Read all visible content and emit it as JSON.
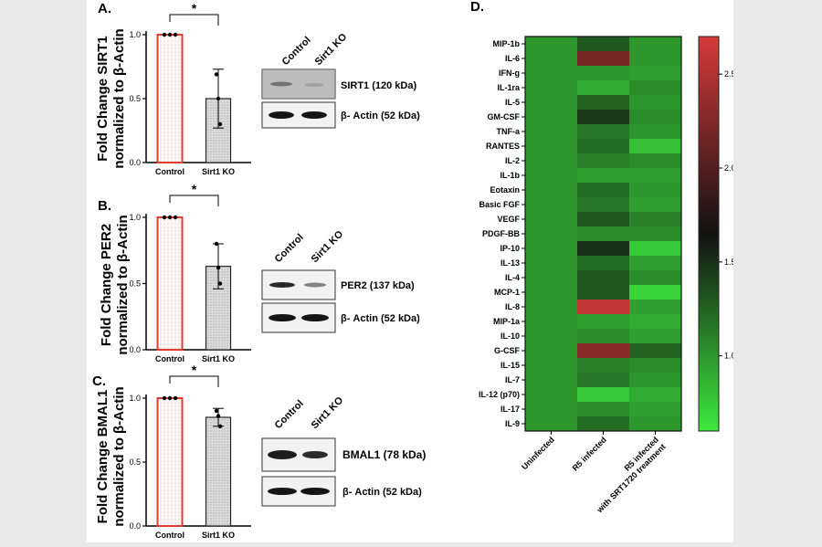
{
  "panels": [
    {
      "letter": "A.",
      "ylabel1": "Fold Change SIRT1",
      "ylabel2": "normalized to β-Actin",
      "ticks": [
        "0.0",
        "0.5",
        "1.0"
      ],
      "sig": "*",
      "blot_target": "SIRT1 (120 kDa)",
      "blot_actin": "β- Actin (52 kDa)"
    },
    {
      "letter": "B.",
      "ylabel1": "Fold Change PER2",
      "ylabel2": "normalized to β-Actin",
      "ticks": [
        "0.0",
        "0.5",
        "1.0"
      ],
      "sig": "*",
      "blot_target": "PER2 (137 kDa)",
      "blot_actin": "β- Actin (52 kDa)"
    },
    {
      "letter": "C.",
      "ylabel1": "Fold Change BMAL1",
      "ylabel2": "normalized to β-Actin",
      "ticks": [
        "0.0",
        "0.5",
        "1.0"
      ],
      "sig": "*",
      "blot_target": "BMAL1 (78 kDa)",
      "blot_actin": "β- Actin (52 kDa)"
    }
  ],
  "heatmap_letter": "D.",
  "colors": {
    "control_bar": "#e53b2c",
    "ko_bar": "#d8d8d8",
    "low": "#3ee83e",
    "mid": "#101010",
    "high": "#d63a3a"
  },
  "chart_data": [
    {
      "type": "bar",
      "title": "A.",
      "ylabel": "Fold Change SIRT1 normalized to β-Actin",
      "categories": [
        "Control",
        "Sirt1 KO"
      ],
      "values": [
        1.0,
        0.5
      ],
      "errors": [
        0,
        0.23
      ],
      "points": [
        [
          1.0,
          1.0,
          1.0
        ],
        [
          0.69,
          0.5,
          0.3
        ]
      ],
      "ylim": [
        0,
        1.1
      ]
    },
    {
      "type": "bar",
      "title": "B.",
      "ylabel": "Fold Change PER2 normalized to β-Actin",
      "categories": [
        "Control",
        "Sirt1 KO"
      ],
      "values": [
        1.0,
        0.63
      ],
      "errors": [
        0,
        0.17
      ],
      "points": [
        [
          1.0,
          1.0,
          1.0
        ],
        [
          0.8,
          0.62,
          0.5
        ]
      ],
      "ylim": [
        0,
        1.1
      ]
    },
    {
      "type": "bar",
      "title": "C.",
      "ylabel": "Fold Change BMAL1 normalized to β-Actin",
      "categories": [
        "Control",
        "Sirt1 KO"
      ],
      "values": [
        1.0,
        0.85
      ],
      "errors": [
        0,
        0.07
      ],
      "points": [
        [
          1.0,
          1.0,
          1.0
        ],
        [
          0.9,
          0.86,
          0.78
        ]
      ],
      "ylim": [
        0,
        1.1
      ]
    },
    {
      "type": "heatmap",
      "title": "D.",
      "columns": [
        "Uninfected",
        "R5 infected",
        "R5 infected\nwith SRT1720 treatment"
      ],
      "rows": [
        "MIP-1b",
        "IL-6",
        "IFN-g",
        "IL-1ra",
        "IL-5",
        "GM-CSF",
        "TNF-a",
        "RANTES",
        "IL-2",
        "IL-1b",
        "Eotaxin",
        "Basic FGF",
        "VEGF",
        "PDGF-BB",
        "IP-10",
        "IL-13",
        "IL-4",
        "MCP-1",
        "IL-8",
        "MIP-1a",
        "IL-10",
        "G-CSF",
        "IL-15",
        "IL-7",
        "IL-12 (p70)",
        "IL-17",
        "IL-9"
      ],
      "values": [
        [
          1.0,
          1.3,
          1.0
        ],
        [
          1.0,
          2.2,
          1.0
        ],
        [
          1.0,
          1.0,
          0.95
        ],
        [
          1.0,
          0.9,
          1.05
        ],
        [
          1.0,
          1.25,
          1.0
        ],
        [
          1.0,
          1.45,
          1.05
        ],
        [
          1.0,
          1.15,
          1.0
        ],
        [
          1.0,
          1.2,
          0.8
        ],
        [
          1.0,
          1.1,
          1.05
        ],
        [
          1.0,
          0.95,
          0.95
        ],
        [
          1.0,
          1.2,
          1.0
        ],
        [
          1.0,
          1.15,
          0.95
        ],
        [
          1.0,
          1.3,
          1.1
        ],
        [
          1.0,
          1.05,
          1.05
        ],
        [
          1.0,
          1.5,
          0.75
        ],
        [
          1.0,
          1.2,
          0.95
        ],
        [
          1.0,
          1.3,
          1.05
        ],
        [
          1.0,
          1.3,
          0.7
        ],
        [
          1.0,
          2.6,
          0.95
        ],
        [
          1.0,
          0.95,
          0.9
        ],
        [
          1.0,
          1.05,
          0.95
        ],
        [
          1.0,
          2.3,
          1.25
        ],
        [
          1.0,
          1.1,
          1.05
        ],
        [
          1.0,
          1.15,
          1.0
        ],
        [
          1.0,
          0.75,
          0.9
        ],
        [
          1.0,
          1.05,
          0.95
        ],
        [
          1.0,
          1.2,
          1.0
        ]
      ],
      "colorbar": {
        "min": 0.6,
        "max": 2.7,
        "ticks": [
          "1.0",
          "1.5",
          "2.0",
          "2.5"
        ]
      }
    }
  ]
}
